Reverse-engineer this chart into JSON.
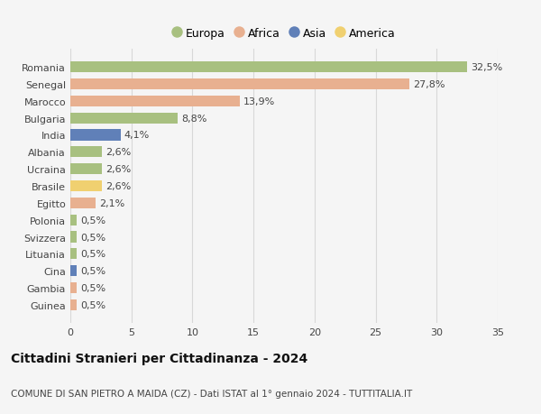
{
  "title": "Cittadini Stranieri per Cittadinanza - 2024",
  "subtitle": "COMUNE DI SAN PIETRO A MAIDA (CZ) - Dati ISTAT al 1° gennaio 2024 - TUTTITALIA.IT",
  "categories": [
    "Romania",
    "Senegal",
    "Marocco",
    "Bulgaria",
    "India",
    "Albania",
    "Ucraina",
    "Brasile",
    "Egitto",
    "Polonia",
    "Svizzera",
    "Lituania",
    "Cina",
    "Gambia",
    "Guinea"
  ],
  "values": [
    32.5,
    27.8,
    13.9,
    8.8,
    4.1,
    2.6,
    2.6,
    2.6,
    2.1,
    0.5,
    0.5,
    0.5,
    0.5,
    0.5,
    0.5
  ],
  "labels": [
    "32,5%",
    "27,8%",
    "13,9%",
    "8,8%",
    "4,1%",
    "2,6%",
    "2,6%",
    "2,6%",
    "2,1%",
    "0,5%",
    "0,5%",
    "0,5%",
    "0,5%",
    "0,5%",
    "0,5%"
  ],
  "bar_colors": [
    "#a8c080",
    "#e8b090",
    "#e8b090",
    "#a8c080",
    "#6080b8",
    "#a8c080",
    "#a8c080",
    "#f0d070",
    "#e8b090",
    "#a8c080",
    "#a8c080",
    "#a8c080",
    "#6080b8",
    "#e8b090",
    "#e8b090"
  ],
  "legend_labels": [
    "Europa",
    "Africa",
    "Asia",
    "America"
  ],
  "legend_colors": [
    "#a8c080",
    "#e8b090",
    "#6080b8",
    "#f0d070"
  ],
  "xlim": [
    0,
    35
  ],
  "xticks": [
    0,
    5,
    10,
    15,
    20,
    25,
    30,
    35
  ],
  "background_color": "#f5f5f5",
  "bar_height": 0.65,
  "grid_color": "#d8d8d8",
  "label_fontsize": 8.0,
  "tick_fontsize": 8.0,
  "legend_fontsize": 9.0,
  "title_fontsize": 10.0,
  "subtitle_fontsize": 7.5
}
